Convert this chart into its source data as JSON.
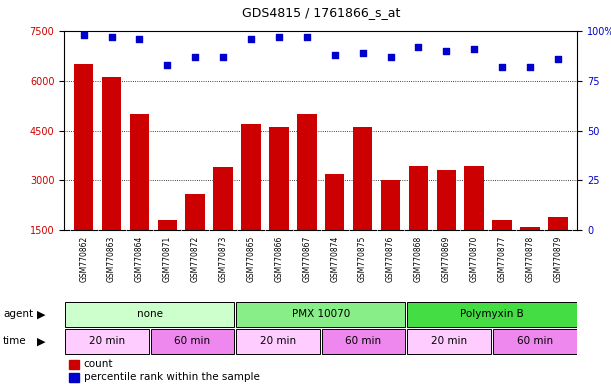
{
  "title": "GDS4815 / 1761866_s_at",
  "samples": [
    "GSM770862",
    "GSM770863",
    "GSM770864",
    "GSM770871",
    "GSM770872",
    "GSM770873",
    "GSM770865",
    "GSM770866",
    "GSM770867",
    "GSM770874",
    "GSM770875",
    "GSM770876",
    "GSM770868",
    "GSM770869",
    "GSM770870",
    "GSM770877",
    "GSM770878",
    "GSM770879"
  ],
  "counts": [
    6500,
    6100,
    5000,
    1800,
    2600,
    3400,
    4700,
    4600,
    5000,
    3200,
    4600,
    3000,
    3450,
    3300,
    3450,
    1800,
    1600,
    1900
  ],
  "percentile_ranks": [
    98,
    97,
    96,
    83,
    87,
    87,
    96,
    97,
    97,
    88,
    89,
    87,
    92,
    90,
    91,
    82,
    82,
    86
  ],
  "ylim_left": [
    1500,
    7500
  ],
  "ylim_right": [
    0,
    100
  ],
  "yticks_left": [
    1500,
    3000,
    4500,
    6000,
    7500
  ],
  "yticks_right": [
    0,
    25,
    50,
    75,
    100
  ],
  "ytick_labels_right": [
    "0",
    "25",
    "50",
    "75",
    "100%"
  ],
  "bar_color": "#cc0000",
  "dot_color": "#0000cc",
  "grid_color": "#000000",
  "agent_groups": [
    {
      "label": "none",
      "start": 0,
      "end": 6,
      "color": "#ccffcc"
    },
    {
      "label": "PMX 10070",
      "start": 6,
      "end": 12,
      "color": "#88ee88"
    },
    {
      "label": "Polymyxin B",
      "start": 12,
      "end": 18,
      "color": "#44dd44"
    }
  ],
  "time_groups": [
    {
      "label": "20 min",
      "start": 0,
      "end": 3,
      "color": "#ffccff"
    },
    {
      "label": "60 min",
      "start": 3,
      "end": 6,
      "color": "#ee88ee"
    },
    {
      "label": "20 min",
      "start": 6,
      "end": 9,
      "color": "#ffccff"
    },
    {
      "label": "60 min",
      "start": 9,
      "end": 12,
      "color": "#ee88ee"
    },
    {
      "label": "20 min",
      "start": 12,
      "end": 15,
      "color": "#ffccff"
    },
    {
      "label": "60 min",
      "start": 15,
      "end": 18,
      "color": "#ee88ee"
    }
  ],
  "legend_count_color": "#cc0000",
  "legend_dot_color": "#0000cc",
  "background_color": "#ffffff",
  "plot_bg_color": "#ffffff",
  "sample_bg_color": "#d8d8d8"
}
